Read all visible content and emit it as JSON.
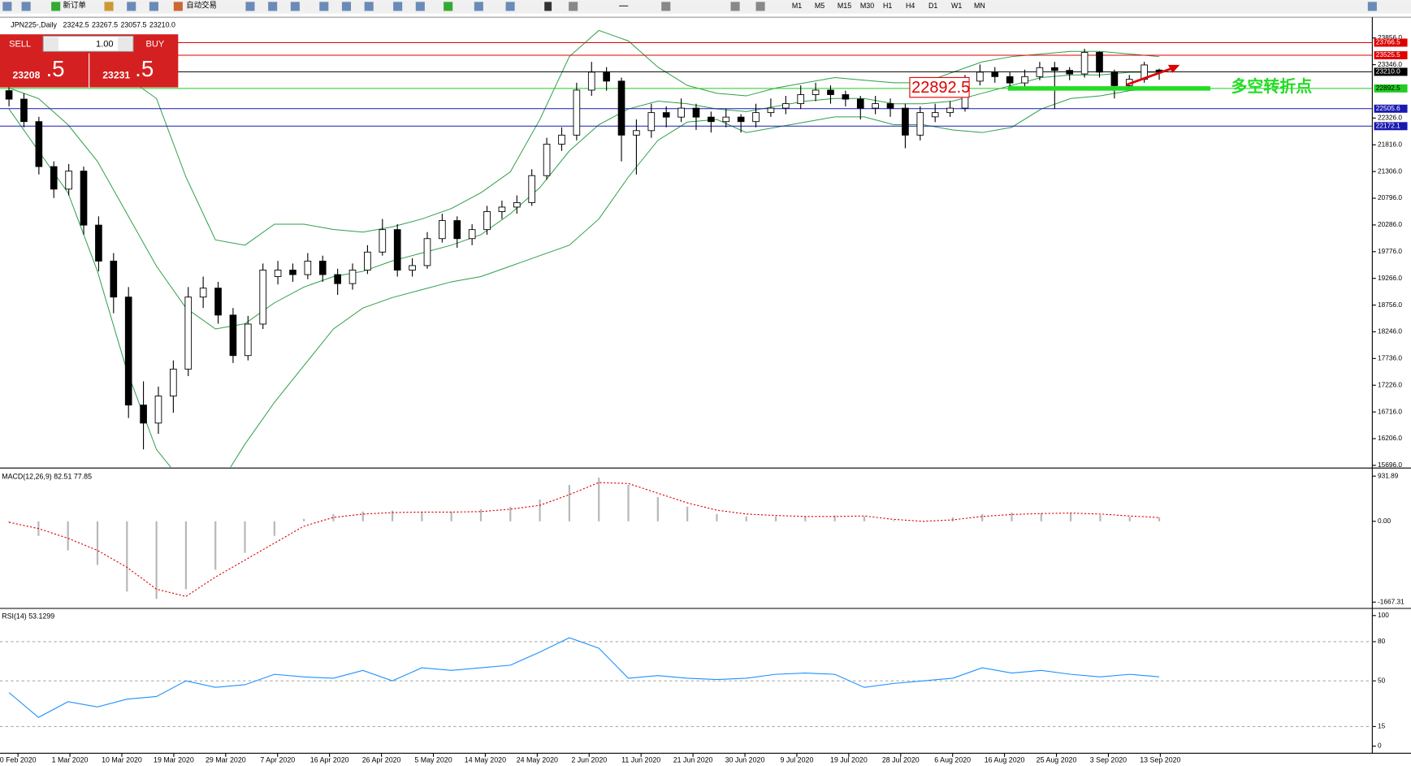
{
  "toolbar": {
    "new_order": "新订单",
    "auto_trading": "自动交易",
    "timeframes": [
      "M1",
      "M5",
      "M15",
      "M30",
      "H1",
      "H4",
      "D1",
      "W1",
      "MN"
    ]
  },
  "trade_panel": {
    "sell": "SELL",
    "buy": "BUY",
    "lot": "1.00",
    "sell_main": "23208",
    "sell_frac": ".5",
    "buy_main": "23231",
    "buy_frac": ".5"
  },
  "chart_data": {
    "type": "candlestick",
    "symbol": "JPN225-,Daily",
    "header_values": [
      "23242.5",
      "23267.5",
      "23057.5",
      "23210.0"
    ],
    "x_labels": [
      "0 Feb 2020",
      "1 Mar 2020",
      "10 Mar 2020",
      "19 Mar 2020",
      "29 Mar 2020",
      "7 Apr 2020",
      "16 Apr 2020",
      "26 Apr 2020",
      "5 May 2020",
      "14 May 2020",
      "24 May 2020",
      "2 Jun 2020",
      "11 Jun 2020",
      "21 Jun 2020",
      "30 Jun 2020",
      "9 Jul 2020",
      "19 Jul 2020",
      "28 Jul 2020",
      "6 Aug 2020",
      "16 Aug 2020",
      "25 Aug 2020",
      "3 Sep 2020",
      "13 Sep 2020"
    ],
    "ylim": [
      15662,
      24235
    ],
    "yticks": [
      {
        "value": 23856,
        "label": "23856.0"
      },
      {
        "value": 23346,
        "label": "23346.0"
      },
      {
        "value": 22326,
        "label": "22326.0"
      },
      {
        "value": 21816,
        "label": "21816.0"
      },
      {
        "value": 21306,
        "label": "21306.0"
      },
      {
        "value": 20796,
        "label": "20796.0"
      },
      {
        "value": 20286,
        "label": "20286.0"
      },
      {
        "value": 19776,
        "label": "19776.0"
      },
      {
        "value": 19266,
        "label": "19266.0"
      },
      {
        "value": 18756,
        "label": "18756.0"
      },
      {
        "value": 18246,
        "label": "18246.0"
      },
      {
        "value": 17736,
        "label": "17736.0"
      },
      {
        "value": 17226,
        "label": "17226.0"
      },
      {
        "value": 16716,
        "label": "16716.0"
      },
      {
        "value": 16206,
        "label": "16206.0"
      },
      {
        "value": 15696,
        "label": "15696.0"
      }
    ],
    "ohlc": [
      [
        22850,
        22950,
        22550,
        22688
      ],
      [
        22688,
        22800,
        22150,
        22259
      ],
      [
        22259,
        22350,
        21250,
        21400
      ],
      [
        21400,
        21500,
        20800,
        20970
      ],
      [
        20970,
        21450,
        20850,
        21314
      ],
      [
        21314,
        21400,
        20100,
        20283
      ],
      [
        20283,
        20450,
        19400,
        19596
      ],
      [
        19596,
        19750,
        18600,
        18909
      ],
      [
        18909,
        19100,
        16600,
        16847
      ],
      [
        16847,
        17300,
        16000,
        16503
      ],
      [
        16503,
        17200,
        16300,
        17019
      ],
      [
        17019,
        17700,
        16700,
        17534
      ],
      [
        17534,
        19100,
        17400,
        18909
      ],
      [
        18909,
        19300,
        18700,
        19080
      ],
      [
        19080,
        19200,
        18400,
        18565
      ],
      [
        18565,
        18700,
        17650,
        17792
      ],
      [
        17792,
        18550,
        17700,
        18393
      ],
      [
        18393,
        19550,
        18300,
        19424
      ],
      [
        19300,
        19600,
        19150,
        19424
      ],
      [
        19424,
        19550,
        19200,
        19338
      ],
      [
        19338,
        19750,
        19250,
        19596
      ],
      [
        19596,
        19700,
        19200,
        19338
      ],
      [
        19338,
        19450,
        18950,
        19166
      ],
      [
        19166,
        19550,
        19050,
        19424
      ],
      [
        19424,
        19900,
        19350,
        19768
      ],
      [
        19768,
        20400,
        19700,
        20197
      ],
      [
        20197,
        20300,
        19300,
        19424
      ],
      [
        19424,
        19650,
        19300,
        19510
      ],
      [
        19510,
        20150,
        19450,
        20025
      ],
      [
        20025,
        20500,
        19950,
        20369
      ],
      [
        20369,
        20450,
        19850,
        20025
      ],
      [
        20025,
        20300,
        19900,
        20197
      ],
      [
        20197,
        20650,
        20100,
        20541
      ],
      [
        20541,
        20750,
        20400,
        20627
      ],
      [
        20627,
        20850,
        20500,
        20713
      ],
      [
        20713,
        21350,
        20650,
        21228
      ],
      [
        21228,
        21950,
        21150,
        21829
      ],
      [
        21829,
        22150,
        21700,
        22001
      ],
      [
        22001,
        23000,
        21900,
        22860
      ],
      [
        22860,
        23400,
        22750,
        23203
      ],
      [
        23203,
        23300,
        22850,
        23032
      ],
      [
        23032,
        23100,
        21500,
        22001
      ],
      [
        22001,
        22300,
        21250,
        22087
      ],
      [
        22087,
        22600,
        21950,
        22431
      ],
      [
        22431,
        22550,
        22150,
        22345
      ],
      [
        22345,
        22700,
        22250,
        22516
      ],
      [
        22516,
        22600,
        22100,
        22345
      ],
      [
        22345,
        22450,
        22050,
        22259
      ],
      [
        22259,
        22500,
        22150,
        22345
      ],
      [
        22345,
        22400,
        22050,
        22259
      ],
      [
        22259,
        22600,
        22150,
        22431
      ],
      [
        22431,
        22700,
        22350,
        22516
      ],
      [
        22516,
        22750,
        22400,
        22602
      ],
      [
        22602,
        22950,
        22500,
        22774
      ],
      [
        22774,
        23000,
        22650,
        22860
      ],
      [
        22860,
        22950,
        22600,
        22774
      ],
      [
        22774,
        22850,
        22550,
        22688
      ],
      [
        22688,
        22750,
        22300,
        22516
      ],
      [
        22516,
        22750,
        22400,
        22602
      ],
      [
        22602,
        22700,
        22350,
        22516
      ],
      [
        22516,
        22600,
        21750,
        22001
      ],
      [
        22001,
        22550,
        21900,
        22431
      ],
      [
        22350,
        22600,
        22250,
        22431
      ],
      [
        22431,
        22650,
        22350,
        22516
      ],
      [
        22516,
        23150,
        22450,
        23032
      ],
      [
        23032,
        23350,
        22950,
        23203
      ],
      [
        23203,
        23300,
        23000,
        23118
      ],
      [
        23118,
        23200,
        22850,
        22997
      ],
      [
        22997,
        23250,
        22900,
        23118
      ],
      [
        23118,
        23400,
        23050,
        23289
      ],
      [
        23289,
        23400,
        22500,
        23237
      ],
      [
        23237,
        23300,
        23050,
        23169
      ],
      [
        23169,
        23650,
        23100,
        23581
      ],
      [
        23581,
        23600,
        23100,
        23203
      ],
      [
        23203,
        23250,
        22700,
        22946
      ],
      [
        22946,
        23150,
        22850,
        23066
      ],
      [
        23066,
        23400,
        23000,
        23341
      ],
      [
        23242.5,
        23267.5,
        23057.5,
        23210
      ]
    ],
    "bands": [
      {
        "color": "#2e9e4a",
        "values": [
          23300,
          23350,
          23300,
          23200,
          23100,
          22700,
          21200,
          20000,
          19900,
          20300,
          20300,
          20200,
          20150,
          20250,
          20400,
          20600,
          20900,
          21300,
          22300,
          23500,
          24000,
          23800,
          23300,
          22950,
          22800,
          22750,
          22900,
          23000,
          23100,
          23050,
          23000,
          23000,
          23200,
          23400,
          23500,
          23550,
          23600,
          23600,
          23550,
          23500
        ]
      },
      {
        "color": "#2e9e4a",
        "values": [
          22900,
          22700,
          22200,
          21500,
          20500,
          19500,
          18700,
          18300,
          18400,
          18800,
          19100,
          19300,
          19400,
          19600,
          19750,
          19900,
          20100,
          20500,
          21000,
          21700,
          22200,
          22500,
          22650,
          22600,
          22500,
          22450,
          22550,
          22650,
          22700,
          22700,
          22600,
          22600,
          22650,
          22800,
          22950,
          23100,
          23150,
          23150,
          23200,
          23200
        ]
      },
      {
        "color": "#2e9e4a",
        "values": [
          22500,
          21700,
          20900,
          19400,
          17500,
          16000,
          15300,
          15200,
          16100,
          16900,
          17600,
          18300,
          18700,
          18900,
          19050,
          19200,
          19300,
          19500,
          19700,
          19900,
          20400,
          21200,
          21900,
          22250,
          22300,
          22050,
          22150,
          22250,
          22350,
          22350,
          22200,
          22200,
          22100,
          22050,
          22150,
          22500,
          22700,
          22750,
          22850,
          22900
        ]
      }
    ],
    "hlines": [
      {
        "value": 23766.5,
        "color": "#e00000"
      },
      {
        "value": 23525.5,
        "color": "#e00000"
      },
      {
        "value": 23210,
        "label": "23210.0",
        "color": "#000000"
      },
      {
        "value": 22892.5,
        "color": "#22cc22"
      },
      {
        "value": 22505.6,
        "color": "#1a1ab0"
      },
      {
        "value": 22172.1,
        "color": "#1a1ab0"
      }
    ],
    "annotations": {
      "price_box": "22892.5",
      "turning_point": "多空转折点"
    },
    "macd": {
      "label": "MACD(12,26,9) 82.51 77.85",
      "ylim": [
        -1778.7,
        1061.9
      ],
      "yticks": [
        931.89,
        {
          "value": 0,
          "label": "0.00"
        },
        -1667.31
      ],
      "histogram": [
        -20,
        -300,
        -600,
        -900,
        -1450,
        -1600,
        -1400,
        -1000,
        -650,
        -300,
        50,
        150,
        200,
        220,
        200,
        200,
        250,
        300,
        450,
        750,
        900,
        750,
        500,
        300,
        150,
        100,
        100,
        100,
        120,
        100,
        20,
        0,
        80,
        150,
        180,
        170,
        170,
        130,
        90,
        82.51
      ],
      "signal": [
        -20,
        -150,
        -350,
        -600,
        -950,
        -1400,
        -1550,
        -1150,
        -800,
        -450,
        -100,
        80,
        150,
        180,
        190,
        190,
        200,
        250,
        330,
        550,
        800,
        780,
        580,
        380,
        230,
        150,
        120,
        100,
        100,
        110,
        40,
        0,
        30,
        100,
        140,
        160,
        170,
        150,
        110,
        77.85
      ]
    },
    "rsi": {
      "label": "RSI(14) 53.1299",
      "ylim": [
        -4.8,
        104.1
      ],
      "yticks": [
        100,
        80,
        50,
        15,
        0
      ],
      "values": [
        41,
        22,
        34,
        30,
        36,
        38,
        50,
        45,
        47,
        55,
        53,
        52,
        58,
        50,
        60,
        58,
        60,
        62,
        72,
        83,
        75,
        52,
        54,
        52,
        51,
        52,
        55,
        56,
        55,
        45,
        48,
        50,
        52,
        60,
        56,
        58,
        55,
        53,
        55,
        53.1299
      ]
    }
  }
}
